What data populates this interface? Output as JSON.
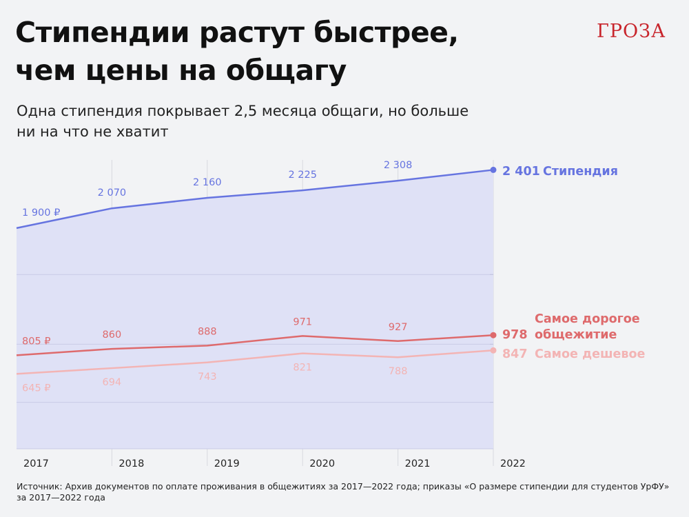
{
  "title_line1": "Стипендии растут быстрее,",
  "title_line2": "чем цены на общагу",
  "subtitle_line1": "Одна стипендия покрывает 2,5 месяца общаги, но больше",
  "subtitle_line2": "ни на что не хватит",
  "logo": "ГРОЗА",
  "source": "Источник: Архив документов по оплате проживания в общежитиях за 2017—2022 года; приказы «О размере стипендии для студентов УрФУ» за 2017—2022 года",
  "colors": {
    "stipend": "#6674e0",
    "stipend_area": "#dfe1f6",
    "expensive": "#de6a6c",
    "cheap": "#f3b4b4"
  },
  "chart_data": {
    "type": "area",
    "x": [
      "2017",
      "2018",
      "2019",
      "2020",
      "2021",
      "2022"
    ],
    "series": [
      {
        "key": "stipend",
        "name": "Стипендия",
        "values": [
          1900,
          2070,
          2160,
          2225,
          2308,
          2401
        ],
        "labels": [
          "1 900 ₽",
          "2 070",
          "2 160",
          "2 225",
          "2 308",
          "2 401"
        ],
        "filled": true
      },
      {
        "key": "expensive",
        "name": "Самое дорогое общежитие",
        "name_lines": [
          "Самое дорогое",
          "общежитие"
        ],
        "values": [
          805,
          860,
          888,
          971,
          927,
          978
        ],
        "labels": [
          "805 ₽",
          "860",
          "888",
          "971",
          "927",
          "978"
        ]
      },
      {
        "key": "cheap",
        "name": "Самое дешевое",
        "values": [
          645,
          694,
          743,
          821,
          788,
          847
        ],
        "labels": [
          "645 ₽",
          "694",
          "743",
          "821",
          "788",
          "847"
        ]
      }
    ],
    "ylim": [
      0,
      2500
    ],
    "grid": true
  }
}
